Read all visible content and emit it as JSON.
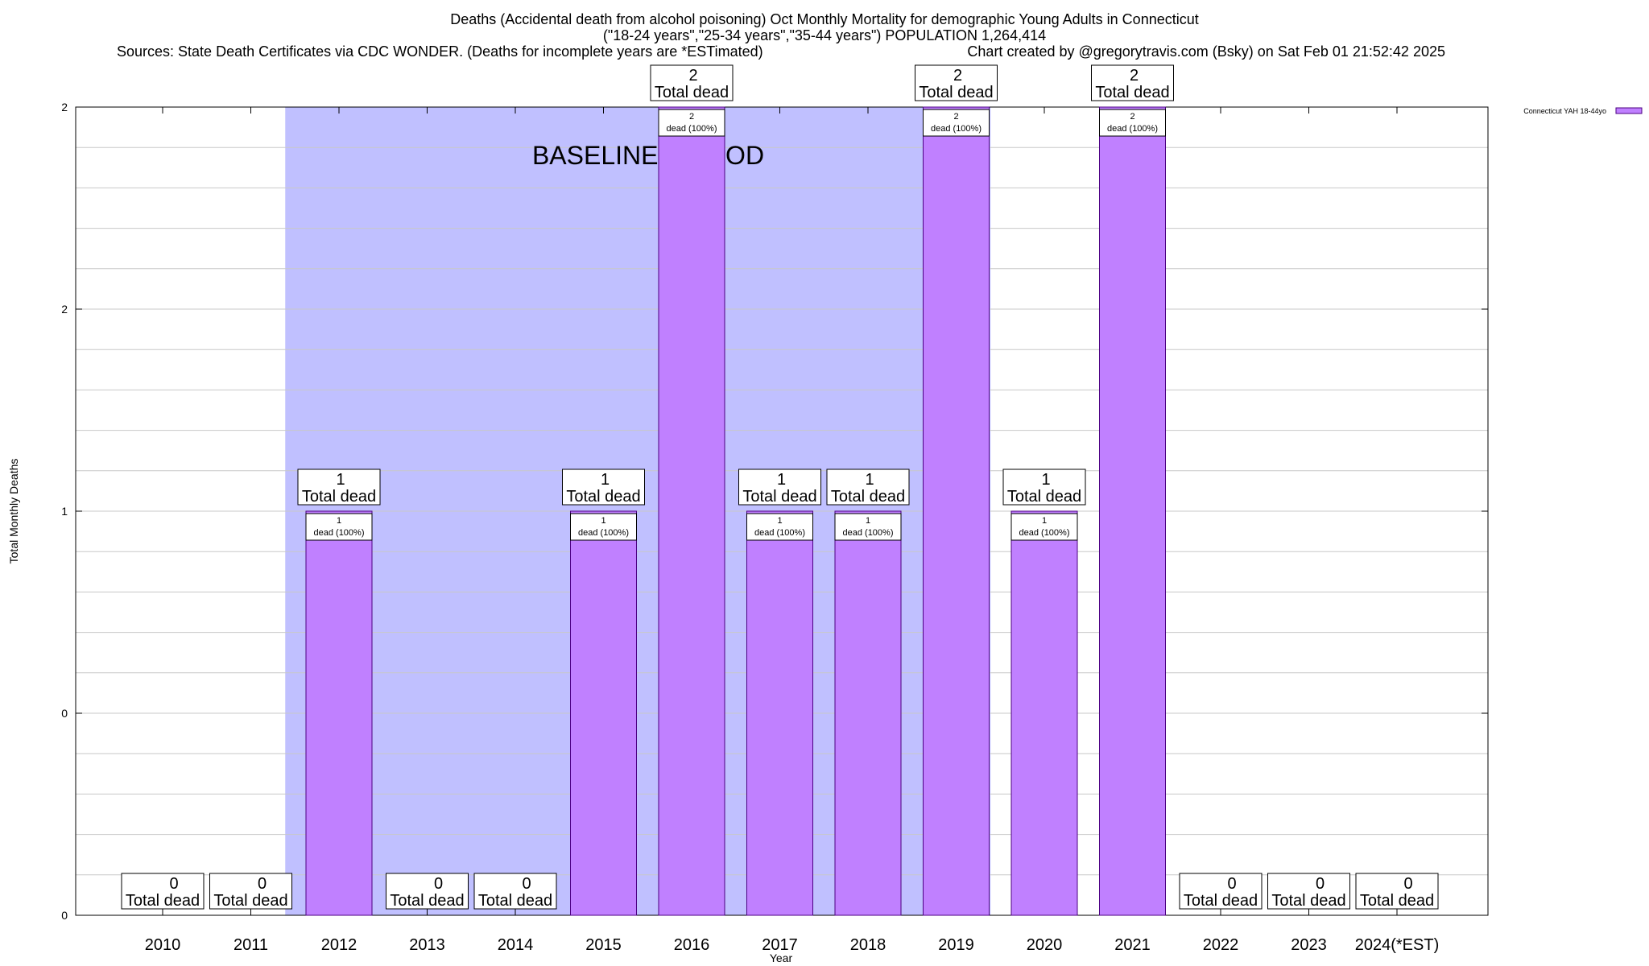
{
  "title": {
    "line1": "Deaths (Accidental death from alcohol poisoning) Oct Monthly Mortality for demographic Young Adults in Connecticut",
    "line2": "(\"18-24 years\",\"25-34 years\",\"35-44 years\") POPULATION 1,264,414",
    "line3_left": "Sources: State Death Certificates via CDC WONDER. (Deaths for incomplete years are *ESTimated)",
    "line3_right": "Chart created by @gregorytravis.com (Bsky) on Sat Feb 01 21:52:42 2025"
  },
  "chart_data": {
    "type": "bar",
    "title": "Deaths (Accidental death from alcohol poisoning) Oct Monthly Mortality for demographic Young Adults in Connecticut",
    "xlabel": "Year",
    "ylabel": "Total Monthly Deaths",
    "categories": [
      "2010",
      "2011",
      "2012",
      "2013",
      "2014",
      "2015",
      "2016",
      "2017",
      "2018",
      "2019",
      "2020",
      "2021",
      "2022",
      "2023",
      "2024(*EST)"
    ],
    "series": [
      {
        "name": "Connecticut YAH 18-44yo",
        "values": [
          0,
          0,
          1,
          0,
          0,
          1,
          2,
          1,
          1,
          2,
          1,
          2,
          0,
          0,
          0
        ]
      }
    ],
    "ylim": [
      0,
      2
    ],
    "y_tick_labels": [
      "0",
      "0",
      "1",
      "2",
      "2"
    ],
    "y_tick_values": [
      0,
      0.5,
      1,
      1.5,
      2
    ],
    "total_label_text": "Total dead",
    "bar_label_text": "dead (100%)",
    "baseline_period": {
      "label": "BASELINE PERIOD",
      "start": "2012",
      "end": "2019"
    },
    "colors": {
      "bar": "#c080ff",
      "bar_edge": "#4b0082",
      "baseline_shade": "#c0c0ff",
      "grid": "#c8c8c8"
    },
    "legend": {
      "entry": "Connecticut YAH 18-44yo",
      "placement": "top-right"
    },
    "grid": true
  }
}
